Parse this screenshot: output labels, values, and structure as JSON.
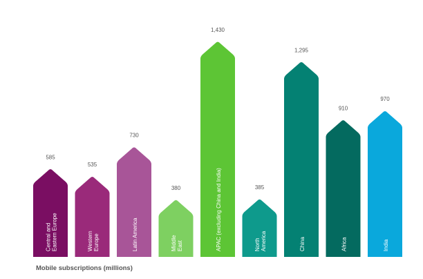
{
  "chart_data": {
    "type": "bar",
    "xlabel": "Mobile subscriptions (millions)",
    "ylabel": "",
    "ylim": [
      0,
      1500
    ],
    "grid": false,
    "legend": "none",
    "categories": [
      [
        "Central and",
        "Eastern Europe"
      ],
      [
        "Western",
        "Europe"
      ],
      [
        "Latin America"
      ],
      [
        "Middle",
        "East"
      ],
      [
        "APAC (excluding China and India)"
      ],
      [
        "North",
        "America"
      ],
      [
        "China"
      ],
      [
        "Africa"
      ],
      [
        "India"
      ]
    ],
    "values": [
      585,
      535,
      730,
      380,
      1430,
      385,
      1295,
      910,
      970
    ],
    "value_labels": [
      "585",
      "535",
      "730",
      "380",
      "1,430",
      "385",
      "1,295",
      "910",
      "970"
    ],
    "colors": [
      "#7a0e62",
      "#9a2a7a",
      "#a85598",
      "#7ed061",
      "#5dc535",
      "#0e9a8c",
      "#048173",
      "#046a5f",
      "#0aa8dc"
    ]
  }
}
